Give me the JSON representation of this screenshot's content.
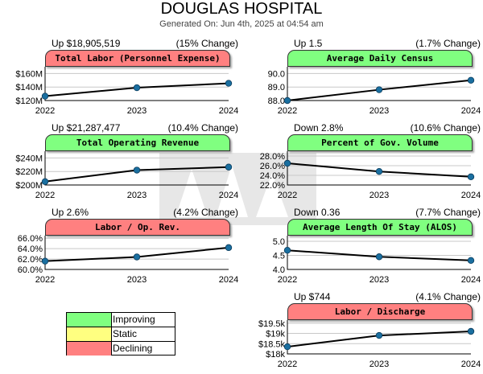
{
  "header": {
    "title": "DOUGLAS HOSPITAL",
    "generated": "Generated On: Jun 4th, 2025 at 04:54 am"
  },
  "colors": {
    "declining": "#ff8080",
    "improving": "#80ff80",
    "static": "#ffff80",
    "line": "#000000",
    "marker": "#1a6fa0"
  },
  "legend": {
    "items": [
      {
        "label": "Improving",
        "color": "#80ff80"
      },
      {
        "label": "Static",
        "color": "#ffff80"
      },
      {
        "label": "Declining",
        "color": "#ff8080"
      }
    ]
  },
  "chart_data": [
    {
      "type": "line",
      "title": "Total Labor (Personnel Expense)",
      "status": "declining",
      "change_left": "Up $18,905,519",
      "change_right": "(15% Change)",
      "categories": [
        "2022",
        "2023",
        "2024"
      ],
      "values": [
        126.5,
        139.0,
        145.5
      ],
      "ylim": [
        120,
        170
      ],
      "yticks": [
        {
          "v": 160,
          "label": "$160M"
        },
        {
          "v": 140,
          "label": "$140M"
        },
        {
          "v": 120,
          "label": "$120M"
        }
      ]
    },
    {
      "type": "line",
      "title": "Average Daily Census",
      "status": "improving",
      "change_left": "Up 1.5",
      "change_right": "(1.7% Change)",
      "categories": [
        "2022",
        "2023",
        "2024"
      ],
      "values": [
        88.0,
        88.8,
        89.5
      ],
      "ylim": [
        88.0,
        90.5
      ],
      "yticks": [
        {
          "v": 90.0,
          "label": "90.0"
        },
        {
          "v": 89.0,
          "label": "89.0"
        },
        {
          "v": 88.0,
          "label": "88.0"
        }
      ]
    },
    {
      "type": "line",
      "title": "Total Operating Revenue",
      "status": "improving",
      "change_left": "Up $21,287,477",
      "change_right": "(10.4% Change)",
      "categories": [
        "2022",
        "2023",
        "2024"
      ],
      "values": [
        205,
        222,
        226.5
      ],
      "ylim": [
        200,
        250
      ],
      "yticks": [
        {
          "v": 240,
          "label": "$240M"
        },
        {
          "v": 220,
          "label": "$220M"
        },
        {
          "v": 200,
          "label": "$200M"
        }
      ]
    },
    {
      "type": "line",
      "title": "Percent of Gov. Volume",
      "status": "improving",
      "change_left": "Down 2.8%",
      "change_right": "(10.6% Change)",
      "categories": [
        "2022",
        "2023",
        "2024"
      ],
      "values": [
        26.5,
        24.8,
        23.7
      ],
      "ylim": [
        22.0,
        29.0
      ],
      "yticks": [
        {
          "v": 28.0,
          "label": "28.0%"
        },
        {
          "v": 26.0,
          "label": "26.0%"
        },
        {
          "v": 24.0,
          "label": "24.0%"
        },
        {
          "v": 22.0,
          "label": "22.0%"
        }
      ]
    },
    {
      "type": "line",
      "title": "Labor / Op. Rev.",
      "status": "declining",
      "change_left": "Up 2.6%",
      "change_right": "(4.2% Change)",
      "categories": [
        "2022",
        "2023",
        "2024"
      ],
      "values": [
        61.6,
        62.4,
        64.2
      ],
      "ylim": [
        60.0,
        66.5
      ],
      "yticks": [
        {
          "v": 66.0,
          "label": "66.0%"
        },
        {
          "v": 64.0,
          "label": "64.0%"
        },
        {
          "v": 62.0,
          "label": "62.0%"
        },
        {
          "v": 60.0,
          "label": "60.0%"
        }
      ]
    },
    {
      "type": "line",
      "title": "Average Length Of Stay (ALOS)",
      "status": "improving",
      "change_left": "Down 0.36",
      "change_right": "(7.7% Change)",
      "categories": [
        "2022",
        "2023",
        "2024"
      ],
      "values": [
        4.68,
        4.45,
        4.32
      ],
      "ylim": [
        4.0,
        5.2
      ],
      "yticks": [
        {
          "v": 5.0,
          "label": "5.0"
        },
        {
          "v": 4.5,
          "label": "4.5"
        },
        {
          "v": 4.0,
          "label": "4.0"
        }
      ]
    },
    {
      "type": "line",
      "title": "Labor / Discharge",
      "status": "declining",
      "change_left": "Up $744",
      "change_right": "(4.1% Change)",
      "categories": [
        "2022",
        "2023",
        "2024"
      ],
      "values": [
        18.35,
        18.9,
        19.1
      ],
      "ylim": [
        18.0,
        19.65
      ],
      "yticks": [
        {
          "v": 19.5,
          "label": "$19.5k"
        },
        {
          "v": 19.0,
          "label": "$19k"
        },
        {
          "v": 18.5,
          "label": "$18.5k"
        },
        {
          "v": 18.0,
          "label": "$18k"
        }
      ]
    }
  ]
}
